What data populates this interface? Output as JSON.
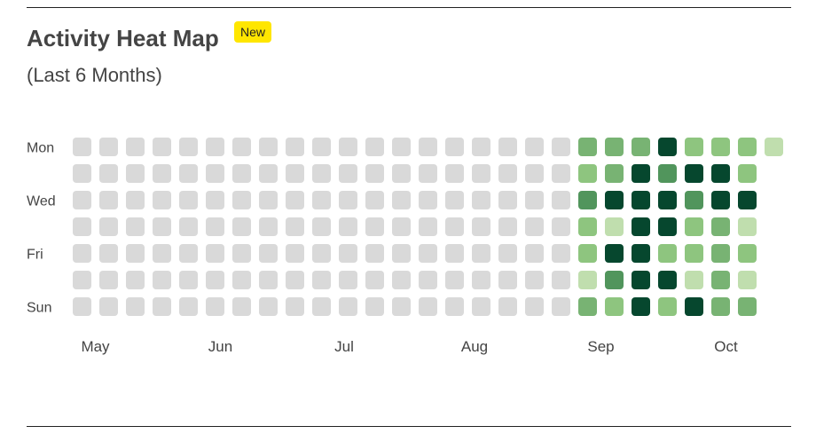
{
  "header": {
    "title": "Activity Heat Map",
    "badge": "New",
    "subtitle": "(Last 6 Months)"
  },
  "colors": {
    "empty": "#d9d9d9",
    "level1": "#c0deae",
    "level2": "#8ec57f",
    "level3": "#78b373",
    "level4": "#51955c",
    "level5": "#06472e"
  },
  "chart_data": {
    "type": "heatmap",
    "title": "Activity Heat Map",
    "subtitle": "(Last 6 Months)",
    "row_labels": [
      "Mon",
      "",
      "Wed",
      "",
      "Fri",
      "",
      "Sun"
    ],
    "month_labels": [
      {
        "label": "May",
        "week": 0.5
      },
      {
        "label": "Jun",
        "week": 5.2
      },
      {
        "label": "Jul",
        "week": 9.85
      },
      {
        "label": "Aug",
        "week": 14.75
      },
      {
        "label": "Sep",
        "week": 19.5
      },
      {
        "label": "Oct",
        "week": 24.2
      }
    ],
    "levels": [
      0,
      1,
      2,
      3,
      4,
      5
    ],
    "weeks": 27,
    "values": [
      [
        0,
        0,
        0,
        0,
        0,
        0,
        0,
        0,
        0,
        0,
        0,
        0,
        0,
        0,
        0,
        0,
        0,
        0,
        0,
        3,
        3,
        3,
        5,
        2,
        2,
        2,
        1
      ],
      [
        0,
        0,
        0,
        0,
        0,
        0,
        0,
        0,
        0,
        0,
        0,
        0,
        0,
        0,
        0,
        0,
        0,
        0,
        0,
        2,
        3,
        5,
        4,
        5,
        5,
        2,
        -1
      ],
      [
        0,
        0,
        0,
        0,
        0,
        0,
        0,
        0,
        0,
        0,
        0,
        0,
        0,
        0,
        0,
        0,
        0,
        0,
        0,
        4,
        5,
        5,
        5,
        4,
        5,
        5,
        -1
      ],
      [
        0,
        0,
        0,
        0,
        0,
        0,
        0,
        0,
        0,
        0,
        0,
        0,
        0,
        0,
        0,
        0,
        0,
        0,
        0,
        2,
        1,
        5,
        5,
        2,
        3,
        1,
        -1
      ],
      [
        0,
        0,
        0,
        0,
        0,
        0,
        0,
        0,
        0,
        0,
        0,
        0,
        0,
        0,
        0,
        0,
        0,
        0,
        0,
        2,
        5,
        5,
        2,
        2,
        3,
        2,
        -1
      ],
      [
        0,
        0,
        0,
        0,
        0,
        0,
        0,
        0,
        0,
        0,
        0,
        0,
        0,
        0,
        0,
        0,
        0,
        0,
        0,
        1,
        4,
        5,
        5,
        1,
        3,
        1,
        -1
      ],
      [
        0,
        0,
        0,
        0,
        0,
        0,
        0,
        0,
        0,
        0,
        0,
        0,
        0,
        0,
        0,
        0,
        0,
        0,
        0,
        3,
        2,
        5,
        2,
        5,
        3,
        3,
        -1
      ]
    ],
    "legend": "none"
  }
}
